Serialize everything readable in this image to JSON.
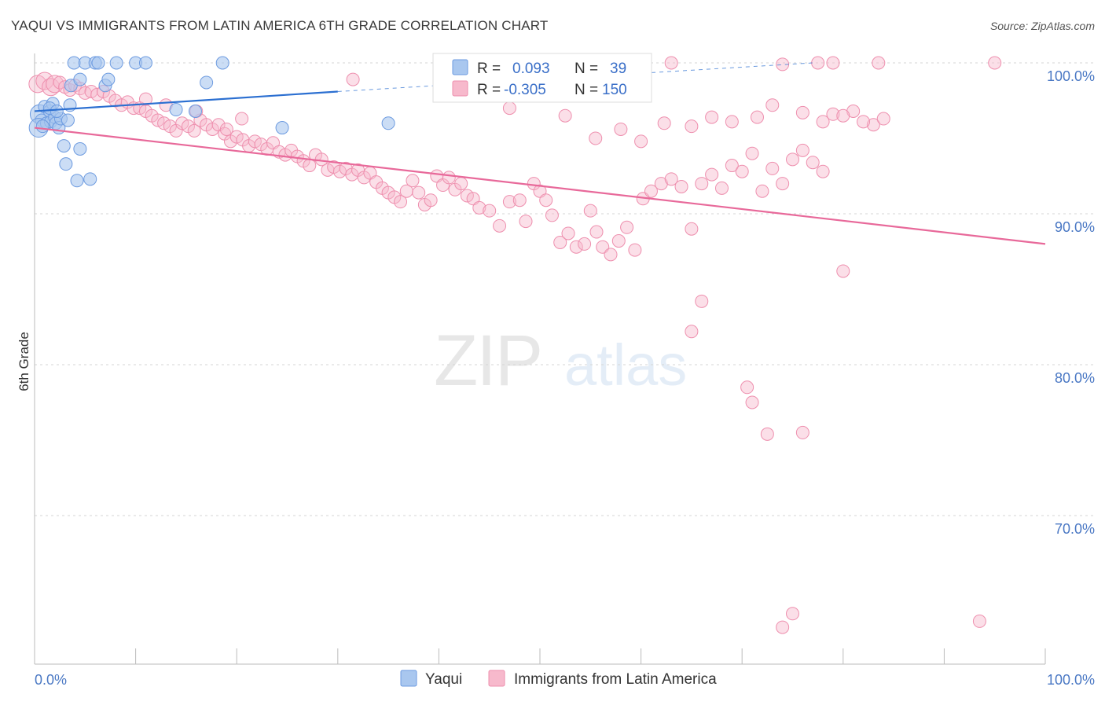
{
  "chart_data": {
    "type": "scatter",
    "title": "YAQUI VS IMMIGRANTS FROM LATIN AMERICA 6TH GRADE CORRELATION CHART",
    "source": "Source: ZipAtlas.com",
    "xlabel": "",
    "ylabel": "6th Grade",
    "xlim": [
      0,
      100
    ],
    "ylim": [
      61.5,
      102
    ],
    "x_tick_labels": [
      "0.0%",
      "100.0%"
    ],
    "y_ticks": [
      {
        "value": 100,
        "label": "100.0%"
      },
      {
        "value": 90,
        "label": "90.0%"
      },
      {
        "value": 80,
        "label": "80.0%"
      },
      {
        "value": 70,
        "label": "70.0%"
      }
    ],
    "grid": true,
    "watermark": {
      "zip": "ZIP",
      "atlas": "atlas"
    },
    "colors": {
      "yaqui_fill": "#a9c7ef",
      "yaqui_stroke": "#6d9be0",
      "yaqui_line": "#2b6fd1",
      "latin_fill": "#f7b9cc",
      "latin_stroke": "#ee8fae",
      "latin_line": "#e8699a"
    },
    "stats_box": {
      "r_label": "R =",
      "n_label": "N =",
      "rows": [
        {
          "series": "Yaqui",
          "r": "0.093",
          "n": "39"
        },
        {
          "series": "Immigrants from Latin America",
          "r": "-0.305",
          "n": "150"
        }
      ]
    },
    "legend": [
      "Yaqui",
      "Immigrants from Latin America"
    ],
    "series": [
      {
        "name": "Yaqui",
        "trend": {
          "x0": 0,
          "y0": 96.8,
          "x1": 30,
          "y1": 98.1,
          "dash_x1": 77,
          "dash_y1": 100
        },
        "points": [
          [
            0.5,
            96.6
          ],
          [
            0.7,
            96.2
          ],
          [
            0.4,
            95.7
          ],
          [
            1.0,
            97.1
          ],
          [
            1.2,
            96.0
          ],
          [
            1.5,
            96.8
          ],
          [
            1.6,
            96.1
          ],
          [
            1.8,
            97.3
          ],
          [
            2.0,
            96.4
          ],
          [
            2.1,
            96.0
          ],
          [
            2.4,
            95.7
          ],
          [
            2.6,
            96.3
          ],
          [
            2.9,
            94.5
          ],
          [
            3.1,
            93.3
          ],
          [
            3.3,
            96.2
          ],
          [
            3.5,
            97.2
          ],
          [
            3.6,
            98.5
          ],
          [
            3.9,
            100
          ],
          [
            4.5,
            98.9
          ],
          [
            5.0,
            100
          ],
          [
            6.0,
            100
          ],
          [
            5.5,
            92.3
          ],
          [
            4.5,
            94.3
          ],
          [
            6.3,
            100
          ],
          [
            7.0,
            98.5
          ],
          [
            7.3,
            98.9
          ],
          [
            8.1,
            100
          ],
          [
            10.0,
            100
          ],
          [
            11.0,
            100
          ],
          [
            14.0,
            96.9
          ],
          [
            17.0,
            98.7
          ],
          [
            18.6,
            100
          ],
          [
            15.9,
            96.8
          ],
          [
            24.5,
            95.7
          ],
          [
            35.0,
            96.0
          ],
          [
            1.5,
            97.0
          ],
          [
            2.2,
            96.8
          ],
          [
            4.2,
            92.2
          ],
          [
            0.8,
            95.8
          ]
        ]
      },
      {
        "name": "Immigrants from Latin America",
        "trend": {
          "x0": 0,
          "y0": 95.7,
          "x1": 100,
          "y1": 88.0
        },
        "points": [
          [
            0.3,
            98.6
          ],
          [
            1.0,
            98.8
          ],
          [
            1.6,
            98.4
          ],
          [
            2.0,
            98.6
          ],
          [
            2.5,
            98.7
          ],
          [
            3.0,
            98.4
          ],
          [
            3.5,
            98.2
          ],
          [
            4.0,
            98.5
          ],
          [
            4.5,
            98.3
          ],
          [
            5.0,
            98.0
          ],
          [
            5.6,
            98.1
          ],
          [
            6.2,
            97.9
          ],
          [
            6.8,
            98.1
          ],
          [
            7.4,
            97.8
          ],
          [
            8.0,
            97.5
          ],
          [
            8.6,
            97.2
          ],
          [
            9.2,
            97.4
          ],
          [
            9.8,
            97.0
          ],
          [
            10.4,
            97.0
          ],
          [
            11.0,
            96.8
          ],
          [
            11.6,
            96.5
          ],
          [
            12.2,
            96.2
          ],
          [
            12.8,
            96.0
          ],
          [
            13.4,
            95.8
          ],
          [
            14.0,
            95.5
          ],
          [
            14.6,
            96.0
          ],
          [
            15.2,
            95.8
          ],
          [
            15.8,
            95.5
          ],
          [
            16.4,
            96.2
          ],
          [
            17.0,
            95.9
          ],
          [
            17.6,
            95.6
          ],
          [
            18.2,
            95.9
          ],
          [
            18.8,
            95.3
          ],
          [
            19.4,
            94.8
          ],
          [
            20.0,
            95.1
          ],
          [
            20.6,
            94.9
          ],
          [
            21.2,
            94.5
          ],
          [
            21.8,
            94.8
          ],
          [
            22.4,
            94.6
          ],
          [
            23.0,
            94.3
          ],
          [
            23.6,
            94.7
          ],
          [
            24.2,
            94.1
          ],
          [
            24.8,
            93.9
          ],
          [
            25.4,
            94.2
          ],
          [
            26.0,
            93.8
          ],
          [
            26.6,
            93.5
          ],
          [
            27.2,
            93.2
          ],
          [
            27.8,
            93.9
          ],
          [
            28.4,
            93.6
          ],
          [
            29.0,
            92.9
          ],
          [
            29.6,
            93.1
          ],
          [
            30.2,
            92.8
          ],
          [
            30.8,
            93.0
          ],
          [
            31.4,
            92.6
          ],
          [
            32.0,
            92.9
          ],
          [
            32.6,
            92.4
          ],
          [
            33.2,
            92.7
          ],
          [
            33.8,
            92.1
          ],
          [
            34.4,
            91.7
          ],
          [
            35.0,
            91.4
          ],
          [
            35.6,
            91.1
          ],
          [
            36.2,
            90.8
          ],
          [
            36.8,
            91.5
          ],
          [
            37.4,
            92.2
          ],
          [
            38.0,
            91.4
          ],
          [
            38.6,
            90.6
          ],
          [
            39.2,
            90.9
          ],
          [
            39.8,
            92.5
          ],
          [
            40.4,
            91.9
          ],
          [
            41.0,
            92.4
          ],
          [
            41.6,
            91.6
          ],
          [
            42.2,
            92.0
          ],
          [
            42.8,
            91.2
          ],
          [
            43.4,
            91.0
          ],
          [
            44.0,
            90.4
          ],
          [
            45.0,
            90.2
          ],
          [
            46.0,
            89.2
          ],
          [
            47.0,
            90.8
          ],
          [
            48.0,
            90.9
          ],
          [
            48.6,
            89.5
          ],
          [
            49.4,
            92.0
          ],
          [
            50.0,
            91.5
          ],
          [
            50.6,
            90.9
          ],
          [
            51.2,
            89.9
          ],
          [
            52.0,
            88.1
          ],
          [
            52.8,
            88.7
          ],
          [
            53.6,
            87.8
          ],
          [
            54.4,
            88.0
          ],
          [
            55.0,
            90.2
          ],
          [
            55.6,
            88.8
          ],
          [
            56.2,
            87.8
          ],
          [
            57.0,
            87.3
          ],
          [
            57.8,
            88.2
          ],
          [
            58.6,
            89.1
          ],
          [
            59.4,
            87.6
          ],
          [
            60.2,
            91.0
          ],
          [
            61.0,
            91.5
          ],
          [
            62.0,
            92.0
          ],
          [
            63.0,
            92.3
          ],
          [
            64.0,
            91.8
          ],
          [
            65.0,
            89.0
          ],
          [
            66.0,
            92.0
          ],
          [
            67.0,
            92.6
          ],
          [
            68.0,
            91.7
          ],
          [
            69.0,
            93.2
          ],
          [
            70.0,
            92.8
          ],
          [
            71.0,
            94.0
          ],
          [
            72.0,
            91.5
          ],
          [
            73.0,
            93.0
          ],
          [
            74.0,
            92.0
          ],
          [
            75.0,
            93.6
          ],
          [
            76.0,
            94.2
          ],
          [
            77.0,
            93.4
          ],
          [
            78.0,
            92.8
          ],
          [
            11.0,
            97.6
          ],
          [
            13.0,
            97.2
          ],
          [
            16.0,
            96.8
          ],
          [
            19.0,
            95.6
          ],
          [
            20.5,
            96.3
          ],
          [
            31.5,
            98.9
          ],
          [
            47.0,
            97.0
          ],
          [
            52.5,
            96.5
          ],
          [
            55.5,
            95.0
          ],
          [
            58.0,
            95.6
          ],
          [
            60.0,
            94.8
          ],
          [
            62.3,
            96.0
          ],
          [
            65.0,
            95.8
          ],
          [
            67.0,
            96.4
          ],
          [
            69.0,
            96.1
          ],
          [
            71.5,
            96.4
          ],
          [
            73.0,
            97.2
          ],
          [
            76.0,
            96.7
          ],
          [
            78.0,
            96.1
          ],
          [
            79.0,
            96.6
          ],
          [
            81.0,
            96.8
          ],
          [
            83.0,
            95.9
          ],
          [
            84.0,
            96.3
          ],
          [
            80.0,
            96.5
          ],
          [
            82.0,
            96.1
          ],
          [
            63.0,
            100
          ],
          [
            74.0,
            99.9
          ],
          [
            77.5,
            100
          ],
          [
            79.0,
            100
          ],
          [
            83.5,
            100
          ],
          [
            95.0,
            100
          ],
          [
            65.0,
            82.2
          ],
          [
            66.0,
            84.2
          ],
          [
            70.5,
            78.5
          ],
          [
            71.0,
            77.5
          ],
          [
            72.5,
            75.4
          ],
          [
            76.0,
            75.5
          ],
          [
            74.0,
            62.6
          ],
          [
            75.0,
            63.5
          ],
          [
            80.0,
            86.2
          ],
          [
            93.5,
            63.0
          ]
        ]
      }
    ]
  }
}
